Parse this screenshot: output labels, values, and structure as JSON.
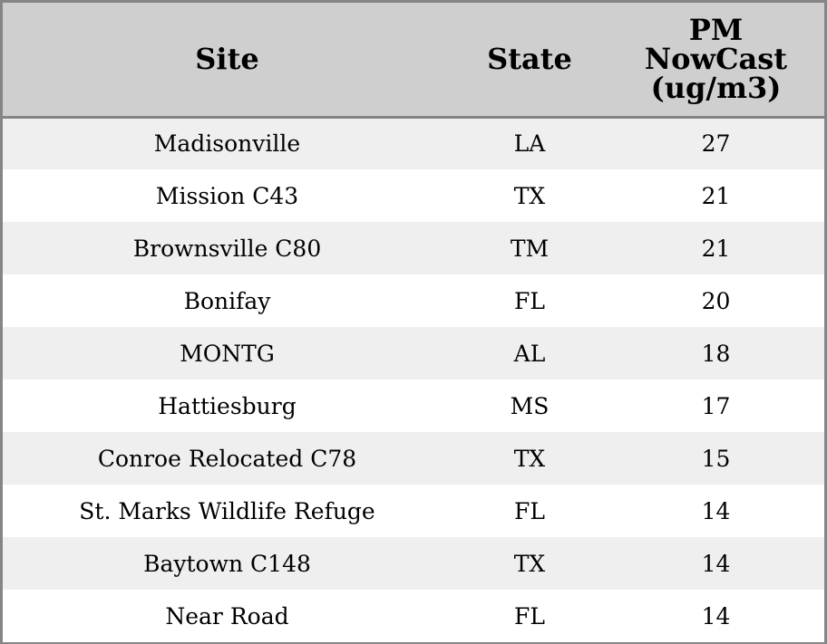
{
  "chart_data": {
    "type": "table",
    "columns": [
      "Site",
      "State",
      "PM NowCast (ug/m3)"
    ],
    "header_lines": {
      "site": [
        "Site"
      ],
      "state": [
        "State"
      ],
      "pm": [
        "PM",
        "NowCast",
        "(ug/m3)"
      ]
    },
    "rows": [
      {
        "site": "Madisonville",
        "state": "LA",
        "pm": "27"
      },
      {
        "site": "Mission C43",
        "state": "TX",
        "pm": "21"
      },
      {
        "site": "Brownsville C80",
        "state": "TM",
        "pm": "21"
      },
      {
        "site": "Bonifay",
        "state": "FL",
        "pm": "20"
      },
      {
        "site": "MONTG",
        "state": "AL",
        "pm": "18"
      },
      {
        "site": "Hattiesburg",
        "state": "MS",
        "pm": "17"
      },
      {
        "site": "Conroe Relocated C78",
        "state": "TX",
        "pm": "15"
      },
      {
        "site": "St. Marks Wildlife Refuge",
        "state": "FL",
        "pm": "14"
      },
      {
        "site": "Baytown C148",
        "state": "TX",
        "pm": "14"
      },
      {
        "site": "Near Road",
        "state": "FL",
        "pm": "14"
      }
    ],
    "colors": {
      "header_background": "#cfcfcf",
      "stripe_background": "#efefef",
      "row_background": "#ffffff",
      "border": "#858585"
    }
  }
}
